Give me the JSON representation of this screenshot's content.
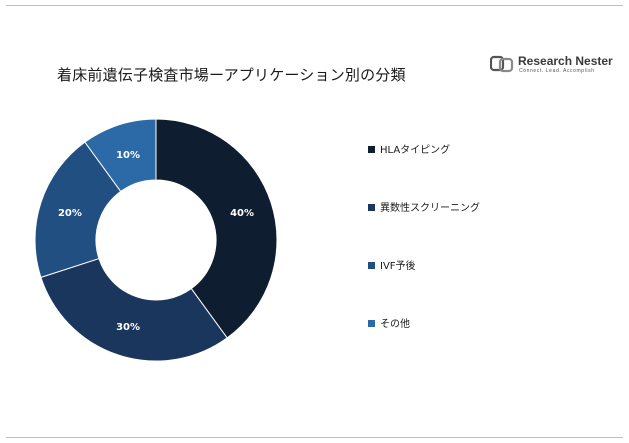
{
  "header": {
    "title": "着床前遺伝子検査市場ーアプリケーション別の分類",
    "logo": {
      "name": "Research Nester",
      "tagline": "Connect. Lead. Accomplish"
    }
  },
  "chart_data": {
    "type": "pie",
    "donut": true,
    "title": "着床前遺伝子検査市場ーアプリケーション別の分類",
    "legend_position": "right",
    "categories": [
      "HLAタイピング",
      "異数性スクリーニング",
      "IVF予後",
      "その他"
    ],
    "values": [
      40,
      30,
      20,
      10
    ],
    "data_labels": [
      "40%",
      "30%",
      "20%",
      "10%"
    ],
    "colors": [
      "#0e1d30",
      "#1b365d",
      "#214f82",
      "#2b6aa6"
    ]
  }
}
